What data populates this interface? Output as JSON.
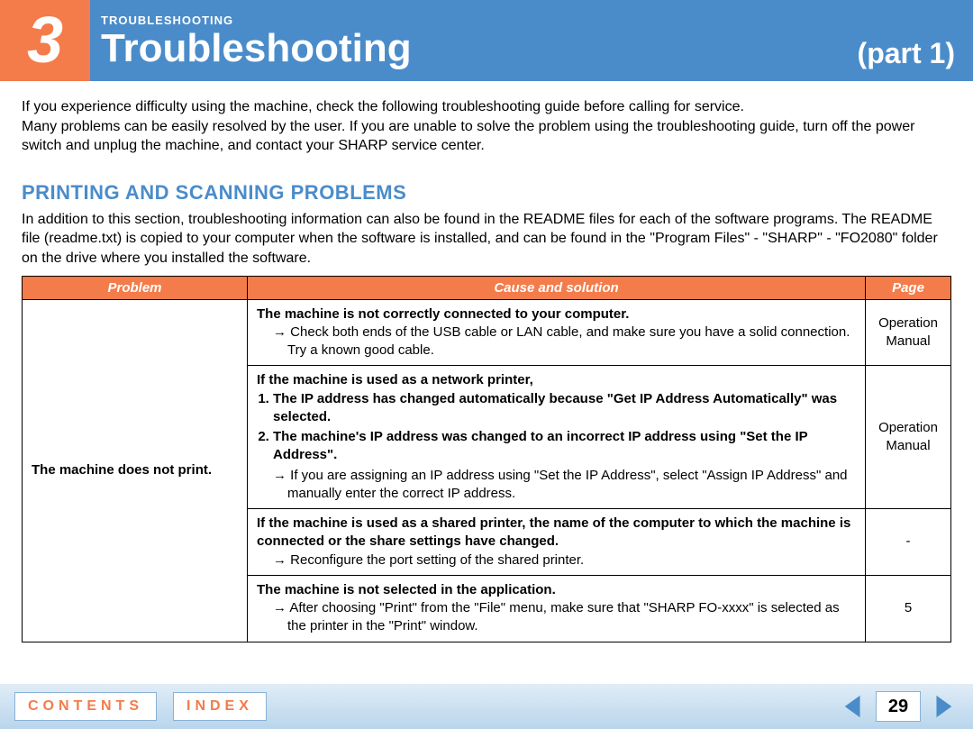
{
  "colors": {
    "orange": "#f47b4a",
    "blue": "#4a8cca",
    "footer_grad_top": "#e0edf7",
    "footer_grad_bottom": "#b9d5ec",
    "btn_border": "#8ab1d6"
  },
  "header": {
    "chapter_number": "3",
    "breadcrumb": "TROUBLESHOOTING",
    "title": "Troubleshooting",
    "part": "(part 1)"
  },
  "intro": "If you experience difficulty using the machine, check the following troubleshooting guide before calling for service.\nMany problems can be easily resolved by the user. If you are unable to solve the problem using the troubleshooting guide, turn off the power switch and unplug the machine, and contact your SHARP service center.",
  "section_heading": "PRINTING AND SCANNING PROBLEMS",
  "sub_intro": "In addition to this section, troubleshooting information can also be found in the README files for each of the software programs. The README file (readme.txt) is copied to your computer when the software is installed, and can be found in the \"Program Files\" - \"SHARP\" - \"FO2080\" folder on the drive where you installed the software.",
  "table": {
    "headers": {
      "problem": "Problem",
      "cause": "Cause and solution",
      "page": "Page"
    },
    "problem": "The machine does not print.",
    "rows": [
      {
        "bold": "The machine is not correctly connected to your computer.",
        "arrow_text": "Check both ends of the USB cable or LAN cable, and make sure you have a solid connection. Try a known good cable.",
        "page": "Operation Manual"
      },
      {
        "bold_intro": "If the machine is used as a network printer,",
        "num1": "The IP address has changed automatically because \"Get IP Address Automatically\" was selected.",
        "num2": "The machine's IP address was changed to an incorrect IP address using \"Set the IP Address\".",
        "arrow_text": "If you are assigning an IP address using \"Set the IP Address\", select \"Assign IP Address\" and manually enter the correct IP address.",
        "page": "Operation Manual"
      },
      {
        "bold": "If the machine is used as a shared printer, the name of the computer to which the machine is connected or the share settings have changed.",
        "arrow_text": "Reconfigure the port setting of the shared printer.",
        "page": "-"
      },
      {
        "bold": "The machine is not selected in the application.",
        "arrow_text": "After choosing \"Print\" from the \"File\" menu, make sure that \"SHARP FO-xxxx\" is selected as the printer in the \"Print\" window.",
        "page": "5"
      }
    ]
  },
  "footer": {
    "contents": "CONTENTS",
    "index": "INDEX",
    "page_number": "29"
  }
}
